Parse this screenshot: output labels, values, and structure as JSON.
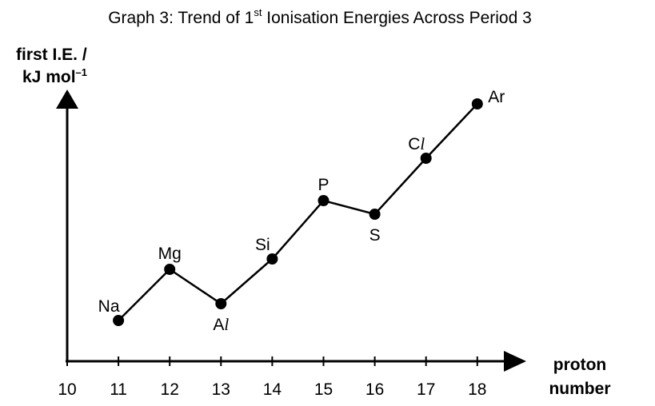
{
  "chart_data": {
    "type": "line",
    "title_main": "Graph 3: Trend of 1",
    "title_sup": "st",
    "title_rest": " Ionisation Energies Across Period 3",
    "ylabel_line1": "first I.E. /",
    "ylabel_line2_main": "kJ mol",
    "ylabel_line2_sup": "–1",
    "xlabel_line1": "proton",
    "xlabel_line2": "number",
    "x_ticks": [
      10,
      11,
      12,
      13,
      14,
      15,
      16,
      17,
      18
    ],
    "xlim": [
      10,
      18.8
    ],
    "grid": false,
    "y_values_relative": true,
    "points": [
      {
        "x": 11,
        "y": 496,
        "element": "Na",
        "prefix": "Na",
        "suffix": "",
        "label_pos": "above-left"
      },
      {
        "x": 12,
        "y": 738,
        "element": "Mg",
        "prefix": "Mg",
        "suffix": "",
        "label_pos": "above"
      },
      {
        "x": 13,
        "y": 578,
        "element": "Al",
        "prefix": "A",
        "suffix": "l",
        "label_pos": "below"
      },
      {
        "x": 14,
        "y": 789,
        "element": "Si",
        "prefix": "Si",
        "suffix": "",
        "label_pos": "above-left"
      },
      {
        "x": 15,
        "y": 1060,
        "element": "P",
        "prefix": "P",
        "suffix": "",
        "label_pos": "above"
      },
      {
        "x": 16,
        "y": 1000,
        "element": "S",
        "prefix": "S",
        "suffix": "",
        "label_pos": "below"
      },
      {
        "x": 17,
        "y": 1260,
        "element": "Cl",
        "prefix": "C",
        "suffix": "l",
        "label_pos": "above-left"
      },
      {
        "x": 18,
        "y": 1520,
        "element": "Ar",
        "prefix": "Ar",
        "suffix": "",
        "label_pos": "right"
      }
    ],
    "ylim": [
      0,
      1650
    ]
  }
}
